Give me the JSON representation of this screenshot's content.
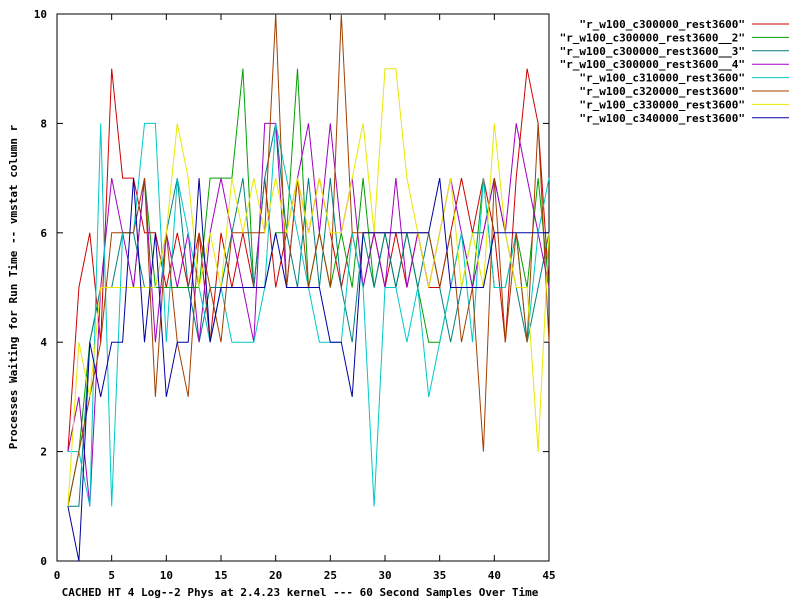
{
  "chart_data": {
    "type": "line",
    "title": "",
    "xlabel": "CACHED HT 4 Log--2 Phys at 2.4.23 kernel --- 60 Second Samples Over Time",
    "ylabel": "Processes Waiting for Run Time -- vmstat column r",
    "xlim": [
      0,
      45
    ],
    "ylim": [
      0,
      10
    ],
    "xticks": [
      0,
      5,
      10,
      15,
      20,
      25,
      30,
      35,
      40,
      45
    ],
    "yticks": [
      0,
      2,
      4,
      6,
      8,
      10
    ],
    "grid": false,
    "legend_position": "top-right-outside",
    "series": [
      {
        "name": "\"r_w100_c300000_rest3600\"",
        "color": "#cc0000",
        "x": [
          1,
          2,
          3,
          4,
          5,
          6,
          7,
          8,
          9,
          10,
          11,
          12,
          13,
          14,
          15,
          16,
          17,
          18,
          19,
          20,
          21,
          22,
          23,
          24,
          25,
          26,
          27,
          28,
          29,
          30,
          31,
          32,
          33,
          34,
          35,
          36,
          37,
          38,
          39,
          40,
          41,
          42,
          43,
          44,
          45
        ],
        "y": [
          2,
          5,
          6,
          4,
          9,
          7,
          7,
          6,
          6,
          5,
          6,
          5,
          6,
          4,
          6,
          5,
          6,
          5,
          7,
          5,
          6,
          7,
          6,
          7,
          6,
          5,
          6,
          5,
          6,
          5,
          6,
          5,
          6,
          5,
          5,
          6,
          7,
          6,
          7,
          6,
          4,
          7,
          9,
          8,
          5
        ]
      },
      {
        "name": "\"r_w100_c300000_rest3600__2\"",
        "color": "#00a000",
        "x": [
          1,
          2,
          3,
          4,
          5,
          6,
          7,
          8,
          9,
          10,
          11,
          12,
          13,
          14,
          15,
          16,
          17,
          18,
          19,
          20,
          21,
          22,
          23,
          24,
          25,
          26,
          27,
          28,
          29,
          30,
          31,
          32,
          33,
          34,
          35,
          36,
          37,
          38,
          39,
          40,
          41,
          42,
          43,
          44,
          45
        ],
        "y": [
          1,
          2,
          4,
          5,
          5,
          5,
          5,
          7,
          5,
          5,
          5,
          5,
          5,
          7,
          7,
          7,
          9,
          5,
          5,
          6,
          6,
          9,
          5,
          6,
          5,
          6,
          5,
          7,
          5,
          6,
          5,
          6,
          5,
          4,
          4,
          5,
          6,
          5,
          7,
          5,
          5,
          6,
          5,
          7,
          5
        ]
      },
      {
        "name": "\"r_w100_c300000_rest3600__3\"",
        "color": "#008080",
        "x": [
          1,
          2,
          3,
          4,
          5,
          6,
          7,
          8,
          9,
          10,
          11,
          12,
          13,
          14,
          15,
          16,
          17,
          18,
          19,
          20,
          21,
          22,
          23,
          24,
          25,
          26,
          27,
          28,
          29,
          30,
          31,
          32,
          33,
          34,
          35,
          36,
          37,
          38,
          39,
          40,
          41,
          42,
          43,
          44,
          45
        ],
        "y": [
          1,
          1,
          4,
          5,
          5,
          6,
          6,
          5,
          5,
          6,
          7,
          5,
          4,
          5,
          5,
          6,
          7,
          5,
          7,
          8,
          6,
          5,
          7,
          5,
          7,
          5,
          4,
          6,
          5,
          6,
          5,
          6,
          5,
          6,
          5,
          4,
          5,
          6,
          6,
          7,
          6,
          5,
          4,
          5,
          6
        ]
      },
      {
        "name": "\"r_w100_c300000_rest3600__4\"",
        "color": "#a000c0",
        "x": [
          1,
          2,
          3,
          4,
          5,
          6,
          7,
          8,
          9,
          10,
          11,
          12,
          13,
          14,
          15,
          16,
          17,
          18,
          19,
          20,
          21,
          22,
          23,
          24,
          25,
          26,
          27,
          28,
          29,
          30,
          31,
          32,
          33,
          34,
          35,
          36,
          37,
          38,
          39,
          40,
          41,
          42,
          43,
          44,
          45
        ],
        "y": [
          2,
          3,
          1,
          5,
          7,
          6,
          5,
          7,
          4,
          6,
          5,
          6,
          4,
          6,
          7,
          6,
          5,
          4,
          8,
          8,
          5,
          7,
          8,
          6,
          8,
          6,
          7,
          5,
          6,
          5,
          7,
          5,
          6,
          5,
          6,
          7,
          6,
          5,
          6,
          7,
          6,
          8,
          7,
          6,
          5
        ]
      },
      {
        "name": "\"r_w100_c310000_rest3600\"",
        "color": "#00c8c8",
        "x": [
          1,
          2,
          3,
          4,
          5,
          6,
          7,
          8,
          9,
          10,
          11,
          12,
          13,
          14,
          15,
          16,
          17,
          18,
          19,
          20,
          21,
          22,
          23,
          24,
          25,
          26,
          27,
          28,
          29,
          30,
          31,
          32,
          33,
          34,
          35,
          36,
          37,
          38,
          39,
          40,
          41,
          42,
          43,
          44,
          45
        ],
        "y": [
          2,
          2,
          1,
          8,
          1,
          6,
          6,
          8,
          8,
          4,
          7,
          6,
          5,
          4,
          5,
          4,
          4,
          4,
          5,
          8,
          7,
          6,
          5,
          4,
          4,
          4,
          6,
          5,
          1,
          5,
          5,
          4,
          5,
          3,
          4,
          5,
          6,
          4,
          7,
          5,
          5,
          6,
          4,
          6,
          7
        ]
      },
      {
        "name": "\"r_w100_c320000_rest3600\"",
        "color": "#a04000",
        "x": [
          1,
          2,
          3,
          4,
          5,
          6,
          7,
          8,
          9,
          10,
          11,
          12,
          13,
          14,
          15,
          16,
          17,
          18,
          19,
          20,
          21,
          22,
          23,
          24,
          25,
          26,
          27,
          28,
          29,
          30,
          31,
          32,
          33,
          34,
          35,
          36,
          37,
          38,
          39,
          40,
          41,
          42,
          43,
          44,
          45
        ],
        "y": [
          1,
          2,
          3,
          4,
          6,
          6,
          6,
          7,
          3,
          6,
          4,
          3,
          6,
          5,
          4,
          6,
          6,
          6,
          6,
          10,
          5,
          7,
          5,
          6,
          5,
          10,
          6,
          6,
          6,
          6,
          6,
          6,
          6,
          6,
          5,
          6,
          4,
          5,
          2,
          7,
          4,
          6,
          4,
          8,
          4
        ]
      },
      {
        "name": "\"r_w100_c330000_rest3600\"",
        "color": "#e8e800",
        "x": [
          1,
          2,
          3,
          4,
          5,
          6,
          7,
          8,
          9,
          10,
          11,
          12,
          13,
          14,
          15,
          16,
          17,
          18,
          19,
          20,
          21,
          22,
          23,
          24,
          25,
          26,
          27,
          28,
          29,
          30,
          31,
          32,
          33,
          34,
          35,
          36,
          37,
          38,
          39,
          40,
          41,
          42,
          43,
          44,
          45
        ],
        "y": [
          1,
          4,
          3,
          5,
          5,
          5,
          5,
          5,
          5,
          6,
          8,
          7,
          5,
          6,
          5,
          7,
          6,
          7,
          6,
          7,
          6,
          7,
          6,
          7,
          6,
          6,
          7,
          8,
          6,
          9,
          9,
          7,
          6,
          5,
          6,
          7,
          5,
          6,
          5,
          8,
          6,
          5,
          5,
          2,
          6
        ]
      },
      {
        "name": "\"r_w100_c340000_rest3600\"",
        "color": "#0000a0",
        "x": [
          1,
          2,
          3,
          4,
          5,
          6,
          7,
          8,
          9,
          10,
          11,
          12,
          13,
          14,
          15,
          16,
          17,
          18,
          19,
          20,
          21,
          22,
          23,
          24,
          25,
          26,
          27,
          28,
          29,
          30,
          31,
          32,
          33,
          34,
          35,
          36,
          37,
          38,
          39,
          40,
          41,
          42,
          43,
          44,
          45
        ],
        "y": [
          1,
          0,
          4,
          3,
          4,
          4,
          7,
          4,
          6,
          3,
          4,
          4,
          7,
          4,
          5,
          5,
          5,
          5,
          5,
          6,
          5,
          5,
          5,
          5,
          4,
          4,
          3,
          6,
          6,
          6,
          6,
          6,
          6,
          6,
          7,
          5,
          5,
          5,
          5,
          6,
          6,
          6,
          6,
          6,
          6
        ]
      }
    ]
  }
}
